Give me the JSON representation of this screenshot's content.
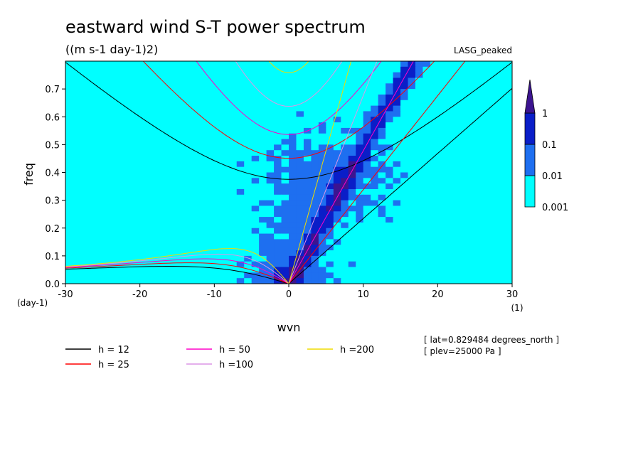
{
  "chart_data": {
    "type": "heatmap",
    "title": "eastward wind S-T power spectrum",
    "subtitle": "((m s-1 day-1)2)",
    "model_label": "LASG_peaked",
    "xlabel": "wvn",
    "ylabel": "freq",
    "x_unit": "(1)",
    "y_unit": "(day-1)",
    "xlim": [
      -30,
      30
    ],
    "ylim": [
      0,
      0.8
    ],
    "x_ticks": [
      "-30",
      "-20",
      "-10",
      "0",
      "10",
      "20",
      "30"
    ],
    "y_ticks": [
      "0.0",
      "0.1",
      "0.2",
      "0.3",
      "0.4",
      "0.5",
      "0.6",
      "0.7"
    ],
    "colorbar": {
      "levels": [
        "0.001",
        "0.01",
        "0.1",
        "1"
      ],
      "colors": [
        "#00ffff",
        "#1e6ff0",
        "#0a1ec8",
        "#3c1490"
      ]
    },
    "annotations": [
      "[ lat=0.829484 degrees_north ]",
      "[ plev=25000 Pa ]"
    ],
    "dispersion_curves": [
      {
        "label": "h = 12",
        "color": "#000000"
      },
      {
        "label": "h = 25",
        "color": "#ff0000"
      },
      {
        "label": "h = 50",
        "color": "#ff00c8"
      },
      {
        "label": "h =100",
        "color": "#dc96e6"
      },
      {
        "label": "h =200",
        "color": "#f0dc00"
      }
    ]
  }
}
